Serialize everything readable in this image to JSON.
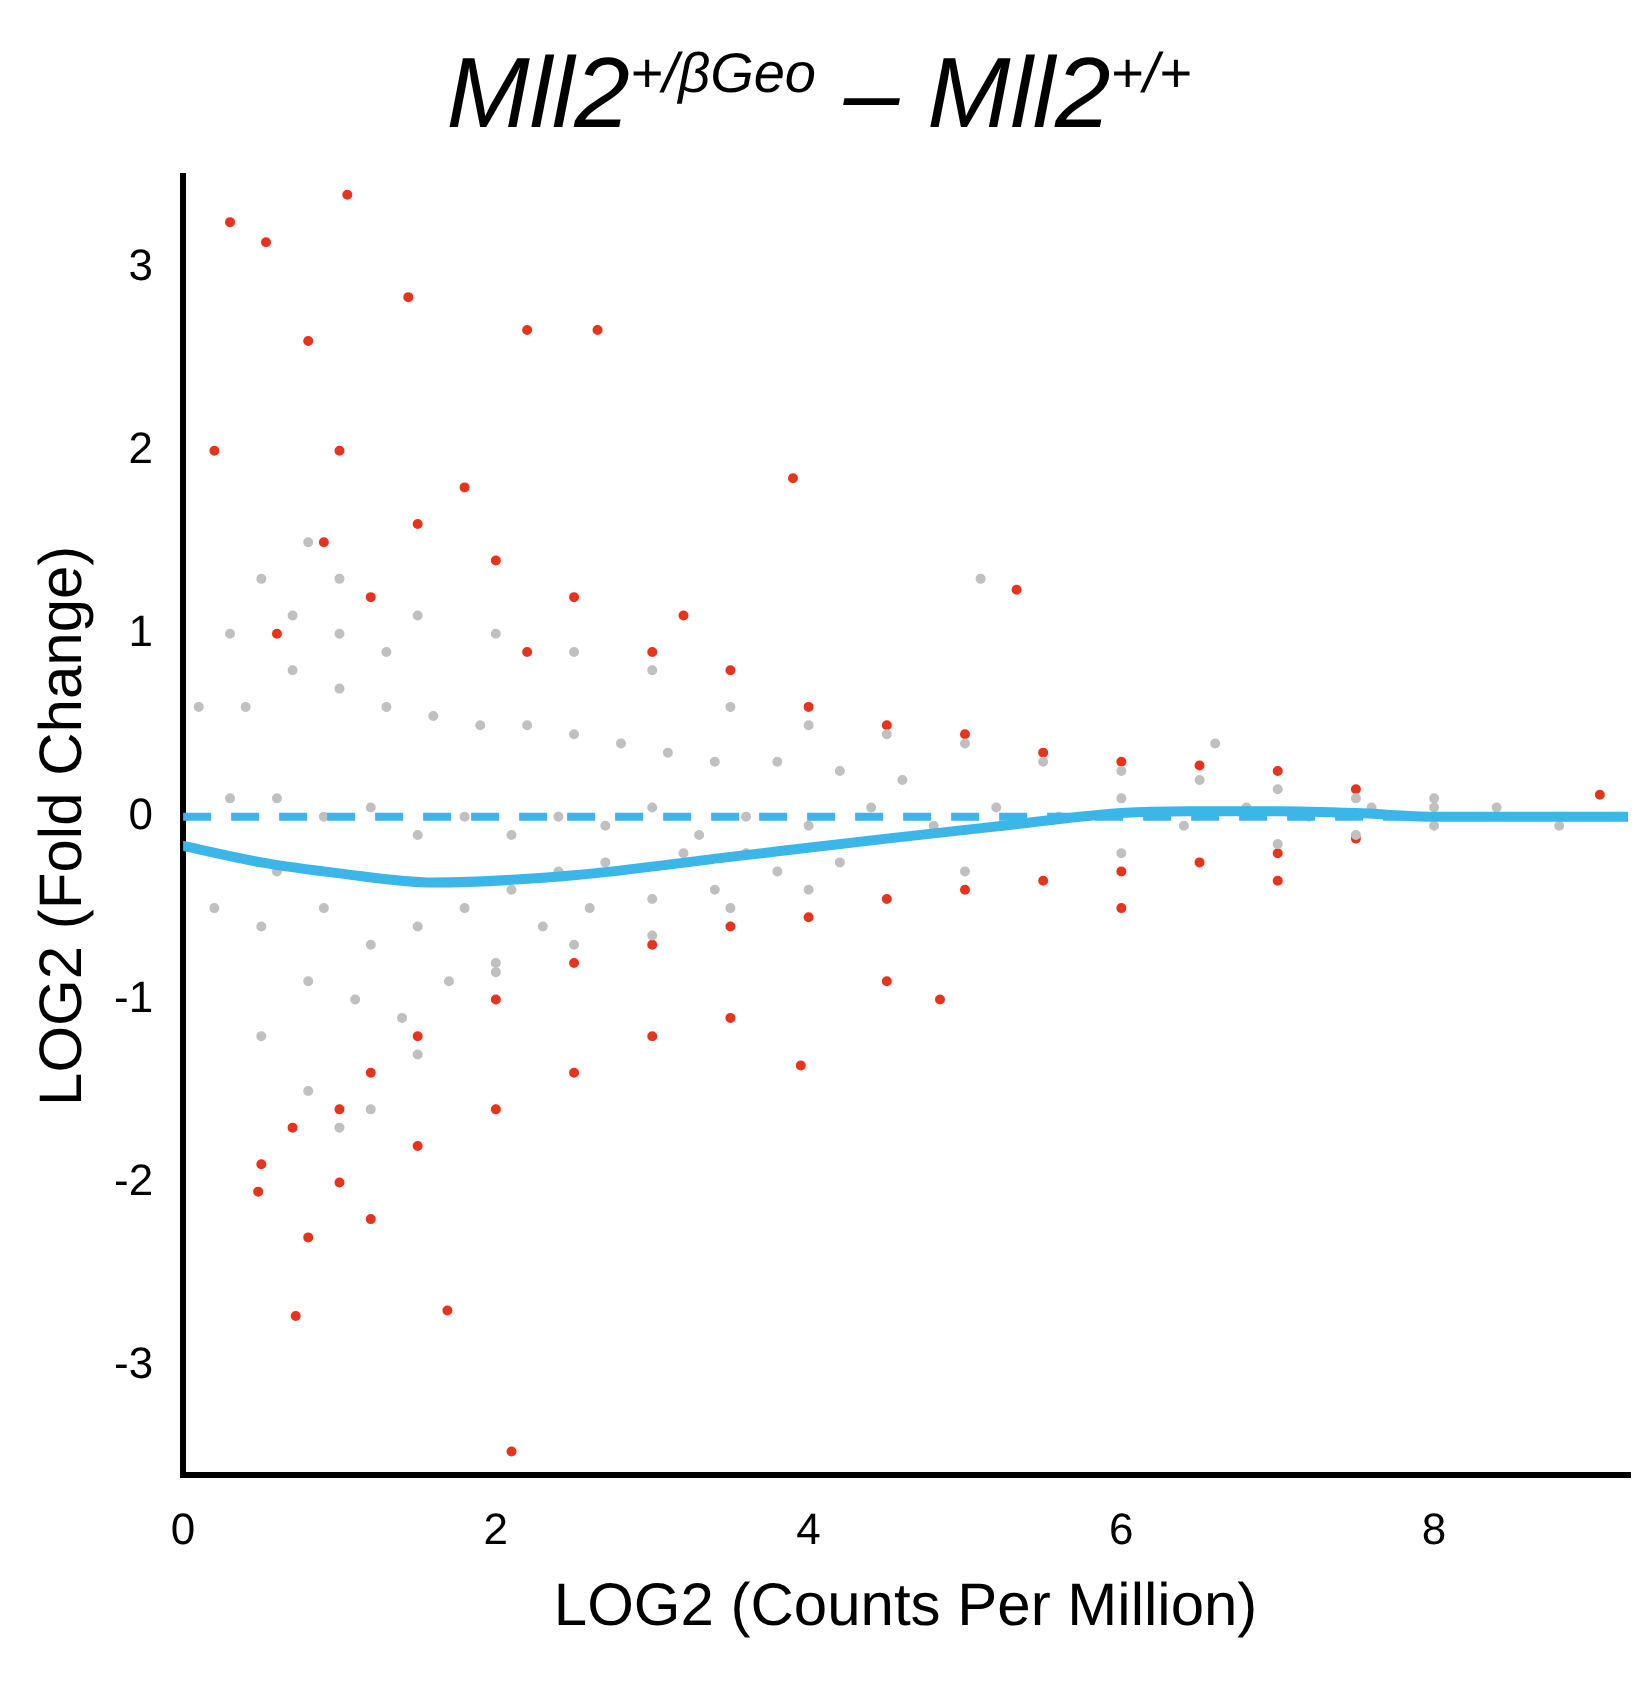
{
  "chart_data": {
    "type": "scatter",
    "title": "Mll2$^{+/βGeo}$ – Mll2$^{+/+}$",
    "xlabel": "LOG2 (Counts Per Million)",
    "ylabel": "LOG2 (Fold Change)",
    "xlim": [
      0,
      9.24
    ],
    "xticks": [
      0,
      2,
      4,
      6,
      8
    ],
    "ylim": [
      -3.6,
      3.5
    ],
    "yticks": [
      -3,
      -2,
      -1,
      0,
      1,
      2,
      3
    ],
    "marker": "circle",
    "ref_lines": [
      {
        "axis": "y",
        "value": 0,
        "color": "#3bb6e8",
        "line_style": "dashed"
      }
    ],
    "series": [
      {
        "color": "#c0c0c0",
        "x": [
          0.1,
          0.3,
          0.5,
          0.8,
          1,
          1.5,
          2,
          2.5,
          3,
          3.5,
          4,
          4.5,
          5,
          5.5,
          6,
          6.5,
          7,
          7.5,
          8,
          0.2,
          0.5,
          0.8,
          1,
          1.2,
          1.5,
          2,
          2.5,
          3,
          3.5,
          4,
          5,
          6,
          7,
          7.5,
          8,
          0.3,
          0.6,
          0.9,
          1.2,
          1.5,
          1.8,
          2.1,
          2.4,
          2.7,
          3,
          3.3,
          3.6,
          4,
          4.4,
          4.8,
          5.2,
          5.6,
          6,
          6.4,
          6.8,
          7.2,
          7.6,
          8,
          8.4,
          8.8,
          0.4,
          0.7,
          1,
          1.3,
          1.6,
          1.9,
          2.2,
          2.5,
          2.8,
          3.1,
          3.4,
          3.8,
          4.2,
          4.6,
          0.5,
          0.8,
          1.1,
          1.4,
          1.7,
          2,
          2.3,
          2.6,
          3,
          3.4,
          3.8,
          4.2,
          0.6,
          0.9,
          1.2,
          1.5,
          1.8,
          2.1,
          2.4,
          2.7,
          3.2,
          3.6,
          0.7,
          1,
          1.3,
          5.1,
          6.6
        ],
        "values": [
          0.6,
          1.0,
          1.3,
          1.5,
          1.3,
          1.1,
          1.0,
          0.9,
          0.8,
          0.6,
          0.5,
          0.45,
          0.4,
          0.3,
          0.25,
          0.2,
          0.15,
          0.1,
          0.05,
          -0.5,
          -1.2,
          -1.5,
          -1.7,
          -1.6,
          -1.3,
          -0.85,
          -0.7,
          -0.65,
          -0.5,
          -0.4,
          -0.3,
          -0.2,
          -0.15,
          -0.1,
          -0.05,
          0.1,
          0.1,
          0.0,
          0.05,
          -0.1,
          0.0,
          -0.1,
          0.0,
          -0.05,
          0.05,
          -0.1,
          0.0,
          -0.05,
          0.05,
          -0.05,
          0.05,
          0.0,
          0.1,
          -0.05,
          0.05,
          0.0,
          0.05,
          0.1,
          0.05,
          -0.05,
          0.6,
          0.8,
          0.7,
          0.6,
          0.55,
          0.5,
          0.5,
          0.45,
          0.4,
          0.35,
          0.3,
          0.3,
          0.25,
          0.2,
          -0.6,
          -0.9,
          -1.0,
          -1.1,
          -0.9,
          -0.8,
          -0.6,
          -0.5,
          -0.45,
          -0.4,
          -0.3,
          -0.25,
          -0.3,
          -0.5,
          -0.7,
          -0.6,
          -0.5,
          -0.4,
          -0.3,
          -0.25,
          -0.2,
          -0.2,
          1.1,
          1.0,
          0.9,
          1.3,
          0.4
        ]
      },
      {
        "color": "#e8341c",
        "x": [
          0.3,
          0.53,
          1.05,
          1.44,
          2.2,
          2.65,
          3.9,
          5.33,
          0.2,
          0.8,
          1.0,
          1.5,
          2.0,
          2.5,
          3.0,
          3.5,
          4.0,
          4.5,
          5.0,
          5.5,
          6.0,
          6.5,
          7.0,
          7.5,
          1.2,
          1.8,
          0.6,
          2.2,
          0.9,
          3.2,
          9.06,
          2.1,
          0.72,
          1.69,
          3.95,
          4.84,
          0.48,
          0.5,
          0.7,
          1.0,
          1.2,
          1.5,
          2.0,
          2.5,
          3.0,
          3.5,
          4.0,
          4.5,
          5.0,
          5.5,
          6.0,
          6.5,
          7.0,
          7.5,
          0.8,
          1.2,
          1.0,
          1.5,
          2.0,
          2.5,
          3.0,
          3.5,
          4.5,
          6.0,
          7.0
        ],
        "values": [
          3.25,
          3.14,
          3.4,
          2.84,
          2.66,
          2.66,
          1.85,
          1.24,
          2.0,
          2.6,
          2.0,
          1.6,
          1.4,
          1.2,
          0.9,
          0.8,
          0.6,
          0.5,
          0.45,
          0.35,
          0.3,
          0.28,
          0.25,
          0.15,
          1.2,
          1.8,
          1.0,
          0.9,
          1.5,
          1.1,
          0.12,
          -3.47,
          -2.73,
          -2.7,
          -1.36,
          -1.0,
          -2.05,
          -1.9,
          -1.7,
          -1.6,
          -1.4,
          -1.2,
          -1.0,
          -0.8,
          -0.7,
          -0.6,
          -0.55,
          -0.45,
          -0.4,
          -0.35,
          -0.3,
          -0.25,
          -0.2,
          -0.12,
          -2.3,
          -2.2,
          -2.0,
          -1.8,
          -1.6,
          -1.4,
          -1.2,
          -1.1,
          -0.9,
          -0.5,
          -0.35
        ]
      },
      {
        "type": "line",
        "color": "#3bb6e8",
        "marker": "none",
        "x": [
          0,
          0.5,
          1,
          1.6,
          2.5,
          3.5,
          4.5,
          5.24,
          6,
          6.43,
          7,
          7.5,
          8,
          9.24
        ],
        "values": [
          -0.16,
          -0.25,
          -0.31,
          -0.36,
          -0.32,
          -0.22,
          -0.12,
          -0.05,
          0.02,
          0.03,
          0.03,
          0.02,
          0.0,
          0.0
        ]
      }
    ]
  }
}
